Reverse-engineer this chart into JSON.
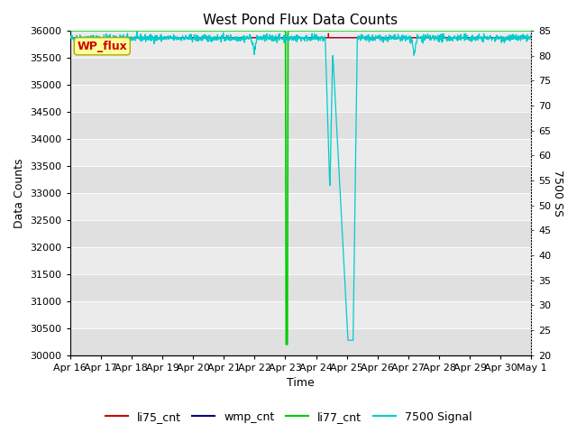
{
  "title": "West Pond Flux Data Counts",
  "xlabel": "Time",
  "ylabel": "Data Counts",
  "ylabel_right": "7500 SS",
  "ylim_left": [
    30000,
    36000
  ],
  "ylim_right": [
    20,
    85
  ],
  "x_tick_labels": [
    "Apr 16",
    "Apr 17",
    "Apr 18",
    "Apr 19",
    "Apr 20",
    "Apr 21",
    "Apr 22",
    "Apr 23",
    "Apr 24",
    "Apr 25",
    "Apr 26",
    "Apr 27",
    "Apr 28",
    "Apr 29",
    "Apr 30",
    "May 1"
  ],
  "annotation_text": "WP_flux",
  "annotation_box_facecolor": "#ffff99",
  "annotation_box_edgecolor": "#aaaa00",
  "annotation_text_color": "#cc0000",
  "bg_color": "#e0e0e0",
  "bg_stripe_color": "#ebebeb",
  "li75_color": "#cc0000",
  "wmp_color": "#00008b",
  "li77_color": "#00cc00",
  "signal_color": "#00cccc",
  "title_fontsize": 11,
  "axis_fontsize": 9,
  "tick_fontsize": 8,
  "legend_fontsize": 9,
  "yticks_left": [
    30000,
    30500,
    31000,
    31500,
    32000,
    32500,
    33000,
    33500,
    34000,
    34500,
    35000,
    35500,
    36000
  ],
  "yticks_right": [
    20,
    25,
    30,
    35,
    40,
    45,
    50,
    55,
    60,
    65,
    70,
    75,
    80,
    85
  ]
}
